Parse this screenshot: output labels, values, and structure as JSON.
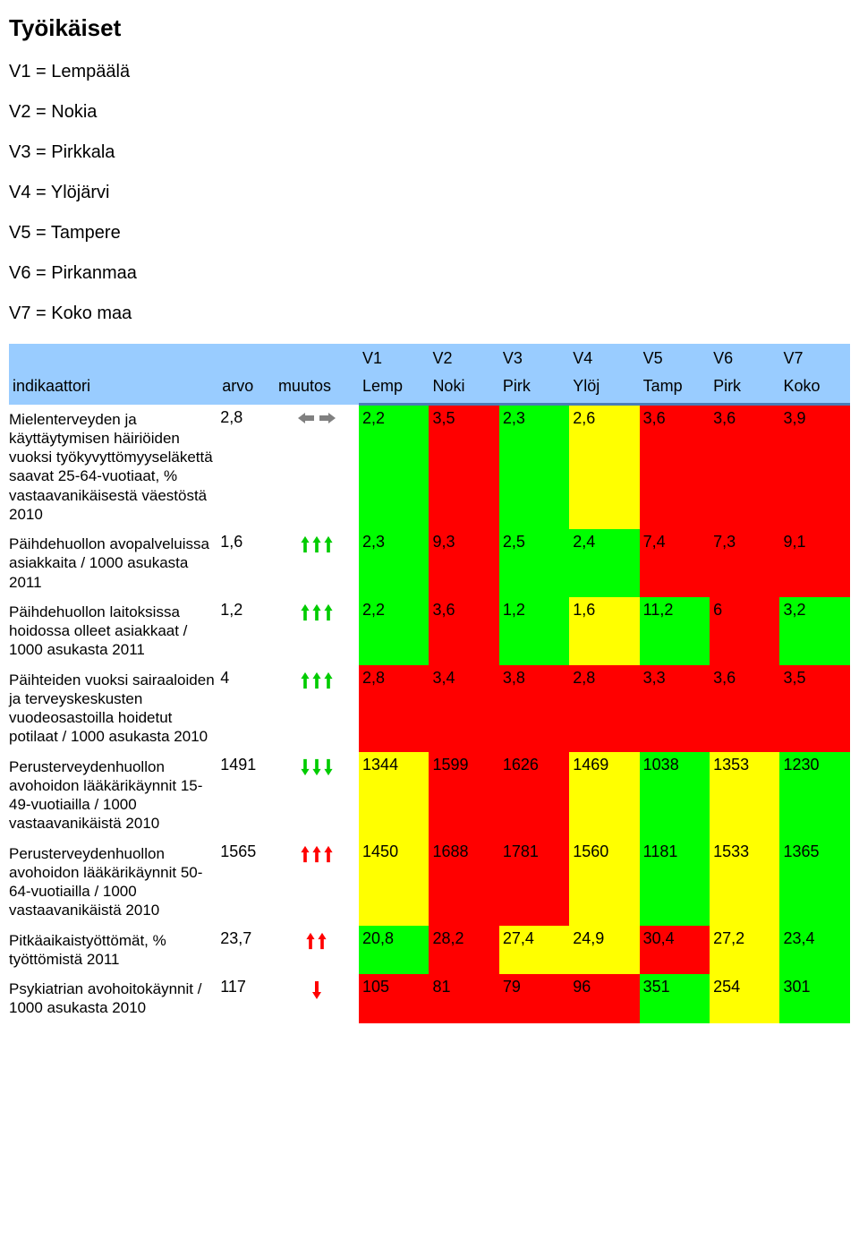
{
  "title": "Työikäiset",
  "legend": [
    "V1 = Lempäälä",
    "V2 = Nokia",
    "V3 = Pirkkala",
    "V4 = Ylöjärvi",
    "V5 = Tampere",
    "V6 = Pirkanmaa",
    "V7 = Koko maa"
  ],
  "header": {
    "indikaattori": "indikaattori",
    "arvo": "arvo",
    "muutos": "muutos",
    "cols_top": [
      "V1",
      "V2",
      "V3",
      "V4",
      "V5",
      "V6",
      "V7"
    ],
    "cols_bot": [
      "Lemp",
      "Noki",
      "Pirk",
      "Ylöj",
      "Tamp",
      "Pirk",
      "Koko"
    ]
  },
  "colors": {
    "header_bg": "#99ccff",
    "header_rule": "#4a7db8",
    "green": "#00ff00",
    "red": "#ff0000",
    "yellow": "#ffff00",
    "arrow_green": "#00cc00",
    "arrow_red": "#ff0000",
    "arrow_gray": "#808080"
  },
  "rows": [
    {
      "indicator": "Mielenterveyden ja käyttäytymisen häiriöiden vuoksi työkyvyttömyyseläkettä saavat 25-64-vuotiaat, % vastaavanikäisestä väestöstä 2010",
      "arvo": "2,8",
      "muutos_icon": "flat-gray",
      "values": [
        "2,2",
        "3,5",
        "2,3",
        "2,6",
        "3,6",
        "3,6",
        "3,9"
      ],
      "cell_colors": [
        "#00ff00",
        "#ff0000",
        "#00ff00",
        "#ffff00",
        "#ff0000",
        "#ff0000",
        "#ff0000"
      ]
    },
    {
      "indicator": "Päihdehuollon avopalveluissa asiakkaita / 1000 asukasta 2011",
      "arvo": "1,6",
      "muutos_icon": "3up-green",
      "values": [
        "2,3",
        "9,3",
        "2,5",
        "2,4",
        "7,4",
        "7,3",
        "9,1"
      ],
      "cell_colors": [
        "#00ff00",
        "#ff0000",
        "#00ff00",
        "#00ff00",
        "#ff0000",
        "#ff0000",
        "#ff0000"
      ]
    },
    {
      "indicator": "Päihdehuollon laitoksissa hoidossa olleet asiakkaat / 1000 asukasta 2011",
      "arvo": "1,2",
      "muutos_icon": "3up-green",
      "values": [
        "2,2",
        "3,6",
        "1,2",
        "1,6",
        "11,2",
        "6",
        "3,2"
      ],
      "cell_colors": [
        "#00ff00",
        "#ff0000",
        "#00ff00",
        "#ffff00",
        "#00ff00",
        "#ff0000",
        "#00ff00"
      ]
    },
    {
      "indicator": "Päihteiden vuoksi sairaaloiden ja terveyskeskusten vuodeosastoilla hoidetut potilaat / 1000 asukasta 2010",
      "arvo": "4",
      "muutos_icon": "3up-green",
      "values": [
        "2,8",
        "3,4",
        "3,8",
        "2,8",
        "3,3",
        "3,6",
        "3,5"
      ],
      "cell_colors": [
        "#ff0000",
        "#ff0000",
        "#ff0000",
        "#ff0000",
        "#ff0000",
        "#ff0000",
        "#ff0000"
      ]
    },
    {
      "indicator": "Perusterveydenhuollon avohoidon lääkärikäynnit 15-49-vuotiailla / 1000 vastaavanikäistä 2010",
      "arvo": "1491",
      "muutos_icon": "3dn-green",
      "values": [
        "1344",
        "1599",
        "1626",
        "1469",
        "1038",
        "1353",
        "1230"
      ],
      "cell_colors": [
        "#ffff00",
        "#ff0000",
        "#ff0000",
        "#ffff00",
        "#00ff00",
        "#ffff00",
        "#00ff00"
      ]
    },
    {
      "indicator": "Perusterveydenhuollon avohoidon lääkärikäynnit 50-64-vuotiailla / 1000 vastaavanikäistä 2010",
      "arvo": "1565",
      "muutos_icon": "3up-red",
      "values": [
        "1450",
        "1688",
        "1781",
        "1560",
        "1181",
        "1533",
        "1365"
      ],
      "cell_colors": [
        "#ffff00",
        "#ff0000",
        "#ff0000",
        "#ffff00",
        "#00ff00",
        "#ffff00",
        "#00ff00"
      ]
    },
    {
      "indicator": "Pitkäaikaistyöttömät, % työttömistä 2011",
      "arvo": "23,7",
      "muutos_icon": "2up-red",
      "values": [
        "20,8",
        "28,2",
        "27,4",
        "24,9",
        "30,4",
        "27,2",
        "23,4"
      ],
      "cell_colors": [
        "#00ff00",
        "#ff0000",
        "#ffff00",
        "#ffff00",
        "#ff0000",
        "#ffff00",
        "#00ff00"
      ]
    },
    {
      "indicator": "Psykiatrian avohoitokäynnit / 1000 asukasta 2010",
      "arvo": "117",
      "muutos_icon": "1dn-red",
      "values": [
        "105",
        "81",
        "79",
        "96",
        "351",
        "254",
        "301"
      ],
      "cell_colors": [
        "#ff0000",
        "#ff0000",
        "#ff0000",
        "#ff0000",
        "#00ff00",
        "#ffff00",
        "#00ff00"
      ]
    }
  ]
}
